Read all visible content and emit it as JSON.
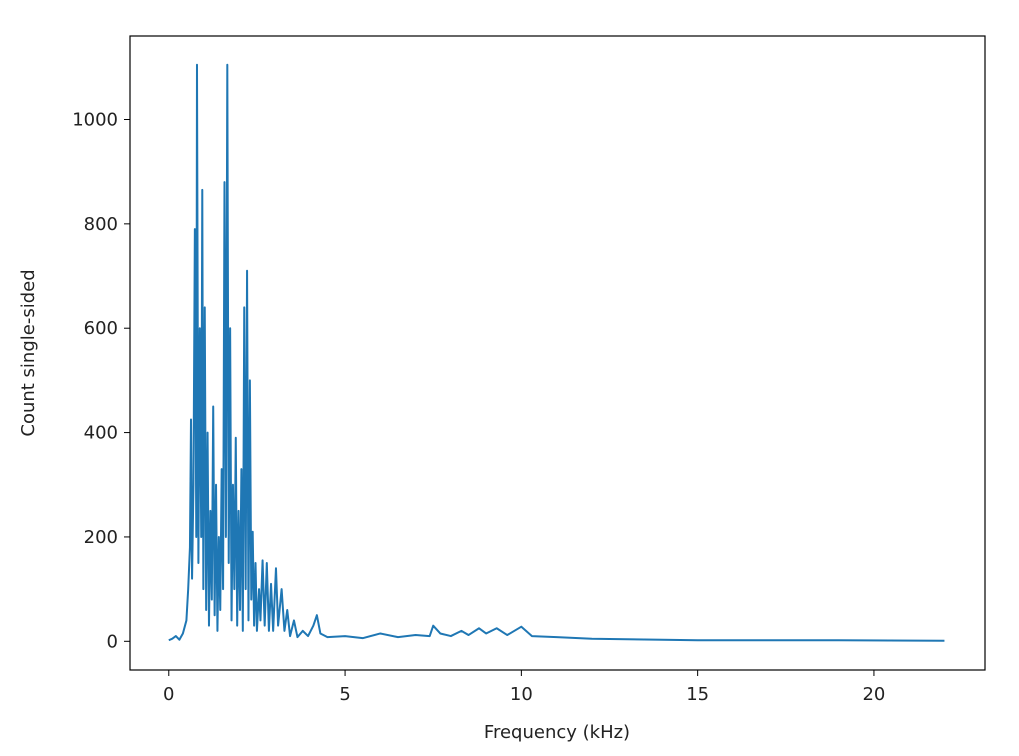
{
  "chart_data": {
    "type": "line",
    "x_label": "Frequency (kHz)",
    "y_label": "Count single-sided",
    "color": "#1f77b4",
    "x": [
      0,
      0.1,
      0.2,
      0.3,
      0.4,
      0.5,
      0.55,
      0.6,
      0.63,
      0.66,
      0.7,
      0.74,
      0.78,
      0.8,
      0.84,
      0.88,
      0.92,
      0.95,
      0.98,
      1.02,
      1.06,
      1.1,
      1.14,
      1.18,
      1.22,
      1.26,
      1.3,
      1.34,
      1.38,
      1.42,
      1.46,
      1.5,
      1.54,
      1.58,
      1.62,
      1.66,
      1.7,
      1.74,
      1.78,
      1.82,
      1.86,
      1.9,
      1.94,
      1.98,
      2.02,
      2.06,
      2.1,
      2.14,
      2.18,
      2.22,
      2.26,
      2.3,
      2.34,
      2.38,
      2.42,
      2.46,
      2.5,
      2.56,
      2.6,
      2.66,
      2.72,
      2.78,
      2.84,
      2.9,
      2.96,
      3.04,
      3.1,
      3.2,
      3.28,
      3.36,
      3.44,
      3.55,
      3.65,
      3.8,
      3.95,
      4.1,
      4.2,
      4.3,
      4.5,
      5,
      5.5,
      6,
      6.5,
      7,
      7.4,
      7.5,
      7.7,
      8,
      8.3,
      8.5,
      8.8,
      9,
      9.3,
      9.6,
      10,
      10.3,
      11,
      12,
      13,
      14,
      15,
      17,
      19,
      22
    ],
    "values": [
      2,
      5,
      10,
      3,
      15,
      40,
      100,
      180,
      425,
      120,
      300,
      790,
      200,
      1105,
      150,
      600,
      200,
      865,
      100,
      640,
      60,
      400,
      30,
      250,
      80,
      450,
      50,
      300,
      20,
      200,
      60,
      330,
      100,
      880,
      200,
      1105,
      150,
      600,
      40,
      300,
      100,
      390,
      30,
      250,
      60,
      330,
      20,
      640,
      100,
      710,
      40,
      500,
      80,
      210,
      30,
      150,
      20,
      100,
      40,
      155,
      30,
      150,
      20,
      110,
      20,
      140,
      30,
      100,
      20,
      60,
      10,
      40,
      8,
      20,
      10,
      30,
      50,
      15,
      8,
      10,
      6,
      15,
      8,
      12,
      10,
      30,
      15,
      10,
      20,
      12,
      25,
      15,
      25,
      12,
      28,
      10,
      8,
      5,
      4,
      3,
      2,
      2,
      2,
      1
    ],
    "xlim": [
      -1.1,
      23.15
    ],
    "ylim": [
      -55,
      1160
    ],
    "xticks": [
      0,
      5,
      10,
      15,
      20
    ],
    "yticks": [
      0,
      200,
      400,
      600,
      800,
      1000
    ]
  }
}
